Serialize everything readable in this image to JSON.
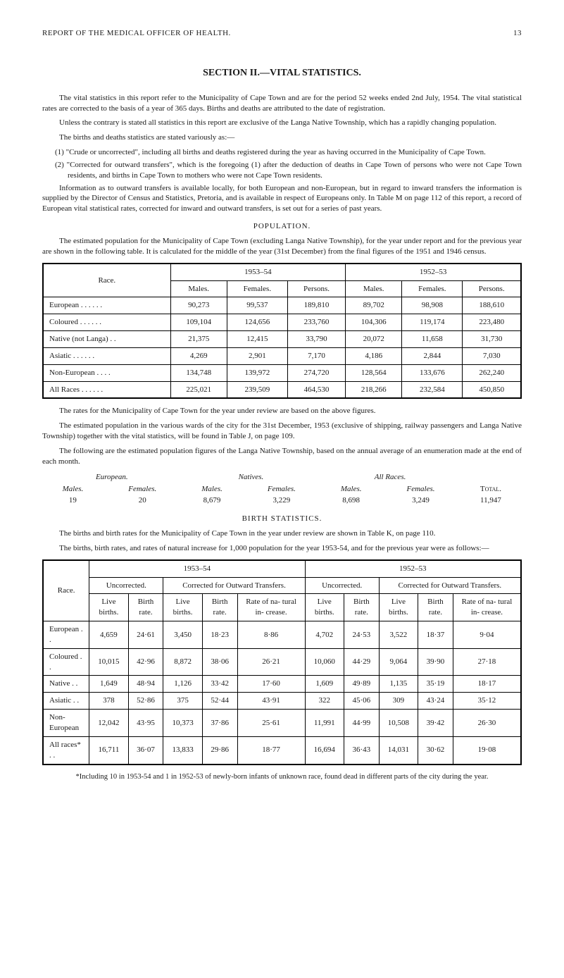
{
  "header": {
    "title": "REPORT OF THE MEDICAL OFFICER OF HEALTH.",
    "page": "13"
  },
  "section_title": "SECTION II.—VITAL STATISTICS.",
  "para1": "The vital statistics in this report refer to the Municipality of Cape Town and are for the period 52 weeks ended 2nd July, 1954. The vital statistical rates are corrected to the basis of a year of 365 days. Births and deaths are attributed to the date of registration.",
  "para2": "Unless the contrary is stated all statistics in this report are exclusive of the Langa Native Township, which has a rapidly changing population.",
  "para3": "The births and deaths statistics are stated variously as:—",
  "item1": "(1) \"Crude or uncorrected\", including all births and deaths registered during the year as having occurred in the Municipality of Cape Town.",
  "item2": "(2) \"Corrected for outward transfers\", which is the foregoing (1) after the deduction of deaths in Cape Town of persons who were not Cape Town residents, and births in Cape Town to mothers who were not Cape Town residents.",
  "para4": "Information as to outward transfers is available locally, for both European and non-European, but in regard to inward transfers the information is supplied by the Director of Census and Statistics, Pretoria, and is available in respect of Europeans only. In Table M on page 112 of this report, a record of European vital statistical rates, corrected for inward and outward transfers, is set out for a series of past years.",
  "pop_caption": "POPULATION.",
  "para5": "The estimated population for the Municipality of Cape Town (excluding Langa Native Township), for the year under report and for the previous year are shown in the following table. It is calculated for the middle of the year (31st December) from the final figures of the 1951 and 1946 census.",
  "table1": {
    "race_label": "Race.",
    "y1": "1953–54",
    "y2": "1952–53",
    "cols": {
      "males": "Males.",
      "females": "Females.",
      "persons": "Persons."
    },
    "rows": [
      {
        "label": "European  . .      . .      . .",
        "a": [
          "90,273",
          "99,537",
          "189,810"
        ],
        "b": [
          "89,702",
          "98,908",
          "188,610"
        ]
      },
      {
        "label": "Coloured  . .      . .      . .",
        "a": [
          "109,104",
          "124,656",
          "233,760"
        ],
        "b": [
          "104,306",
          "119,174",
          "223,480"
        ]
      },
      {
        "label": "Native (not Langa)      . .",
        "a": [
          "21,375",
          "12,415",
          "33,790"
        ],
        "b": [
          "20,072",
          "11,658",
          "31,730"
        ]
      },
      {
        "label": "Asiatic        . .      . .      . .",
        "a": [
          "4,269",
          "2,901",
          "7,170"
        ],
        "b": [
          "4,186",
          "2,844",
          "7,030"
        ]
      },
      {
        "label": "Non-European      . .      . .",
        "a": [
          "134,748",
          "139,972",
          "274,720"
        ],
        "b": [
          "128,564",
          "133,676",
          "262,240"
        ]
      },
      {
        "label": "All Races  . .      . .      . .",
        "a": [
          "225,021",
          "239,509",
          "464,530"
        ],
        "b": [
          "218,266",
          "232,584",
          "450,850"
        ]
      }
    ]
  },
  "para6": "The rates for the Municipality of Cape Town for the year under review are based on the above figures.",
  "para7": "The estimated population in the various wards of the city for the 31st December, 1953 (exclusive of shipping, railway passengers and Langa Native Township) together with the vital statistics, will be found in Table J, on page 109.",
  "para8": "The following are the estimated population figures of the Langa Native Township, based on the annual average of an enumeration made at the end of each month.",
  "inline": {
    "h": {
      "european": "European.",
      "natives": "Natives.",
      "allraces": "All Races."
    },
    "sub": {
      "males": "Males.",
      "females": "Females.",
      "total": "Total."
    },
    "vals": {
      "em": "19",
      "ef": "20",
      "nm": "8,679",
      "nf": "3,229",
      "am": "8,698",
      "af": "3,249",
      "tot": "11,947"
    }
  },
  "birth_caption": "BIRTH STATISTICS.",
  "para9": "The births and birth rates for the Municipality of Cape Town in the year under review are shown in Table K, on page 110.",
  "para10": "The births, birth rates, and rates of natural increase for 1,000 population for the year 1953-54, and for the previous year were as follows:—",
  "table2": {
    "race_label": "Race.",
    "y1": "1953–54",
    "y2": "1952–53",
    "uncorrected": "Uncorrected.",
    "corrected": "Corrected for Outward Transfers.",
    "cols": {
      "live": "Live births.",
      "rate": "Birth rate.",
      "ni": "Rate of na- tural in- crease."
    },
    "rows": [
      {
        "label": "European  . .",
        "u1": [
          "4,659",
          "24·61"
        ],
        "c1": [
          "3,450",
          "18·23",
          "8·86"
        ],
        "u2": [
          "4,702",
          "24·53"
        ],
        "c2": [
          "3,522",
          "18·37",
          "9·04"
        ]
      },
      {
        "label": "Coloured    . .",
        "u1": [
          "10,015",
          "42·96"
        ],
        "c1": [
          "8,872",
          "38·06",
          "26·21"
        ],
        "u2": [
          "10,060",
          "44·29"
        ],
        "c2": [
          "9,064",
          "39·90",
          "27·18"
        ]
      },
      {
        "label": "Native        . .",
        "u1": [
          "1,649",
          "48·94"
        ],
        "c1": [
          "1,126",
          "33·42",
          "17·60"
        ],
        "u2": [
          "1,609",
          "49·89"
        ],
        "c2": [
          "1,135",
          "35·19",
          "18·17"
        ]
      },
      {
        "label": "Asiatic        . .",
        "u1": [
          "378",
          "52·86"
        ],
        "c1": [
          "375",
          "52·44",
          "43·91"
        ],
        "u2": [
          "322",
          "45·06"
        ],
        "c2": [
          "309",
          "43·24",
          "35·12"
        ]
      },
      {
        "label": "Non-\n  European",
        "u1": [
          "12,042",
          "43·95"
        ],
        "c1": [
          "10,373",
          "37·86",
          "25·61"
        ],
        "u2": [
          "11,991",
          "44·99"
        ],
        "c2": [
          "10,508",
          "39·42",
          "26·30"
        ]
      },
      {
        "label": "All races*  . .",
        "u1": [
          "16,711",
          "36·07"
        ],
        "c1": [
          "13,833",
          "29·86",
          "18·77"
        ],
        "u2": [
          "16,694",
          "36·43"
        ],
        "c2": [
          "14,031",
          "30·62",
          "19·08"
        ]
      }
    ]
  },
  "footnote": "*Including 10 in 1953-54 and 1 in 1952-53 of newly-born infants of unknown race, found dead in different parts of the city during the year."
}
